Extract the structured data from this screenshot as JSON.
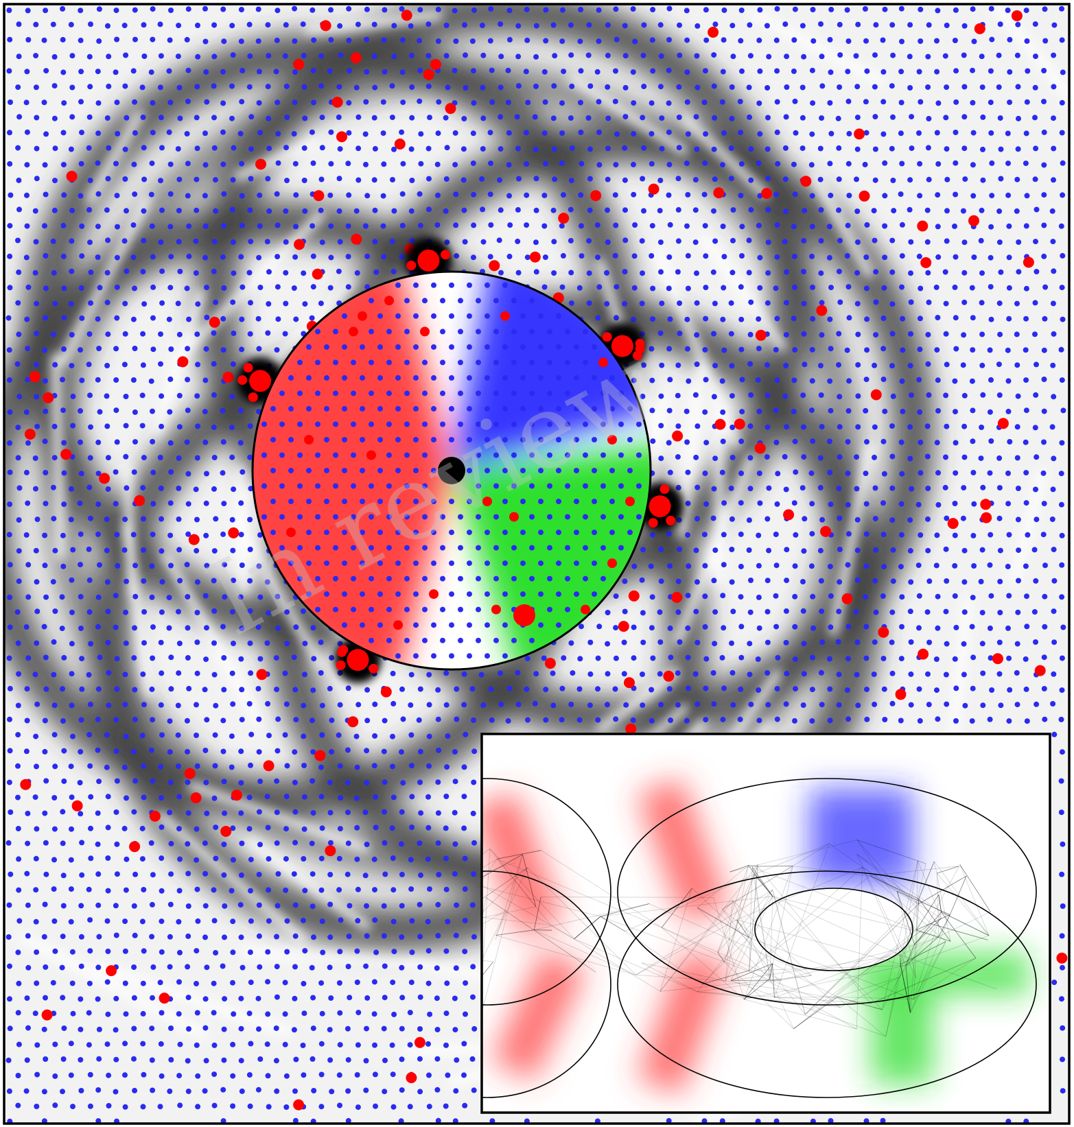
{
  "figure": {
    "watermark": "In review",
    "colors": {
      "background_light": "#f2f2f2",
      "ring_dark": "#3a3a3a",
      "lattice_dot": "#2a2af0",
      "defect_dot": "#ff0000",
      "sector_red": "#ff3a3a",
      "sector_green": "#22dd22",
      "sector_blue": "#2a2aff",
      "outline": "#000000"
    },
    "rings": 6,
    "central_disc": {
      "sectors": [
        "red",
        "blue",
        "green"
      ],
      "center_marker": "black-dot"
    },
    "inset": {
      "content": "torus-network",
      "bands": [
        "red",
        "blue",
        "green"
      ]
    }
  }
}
